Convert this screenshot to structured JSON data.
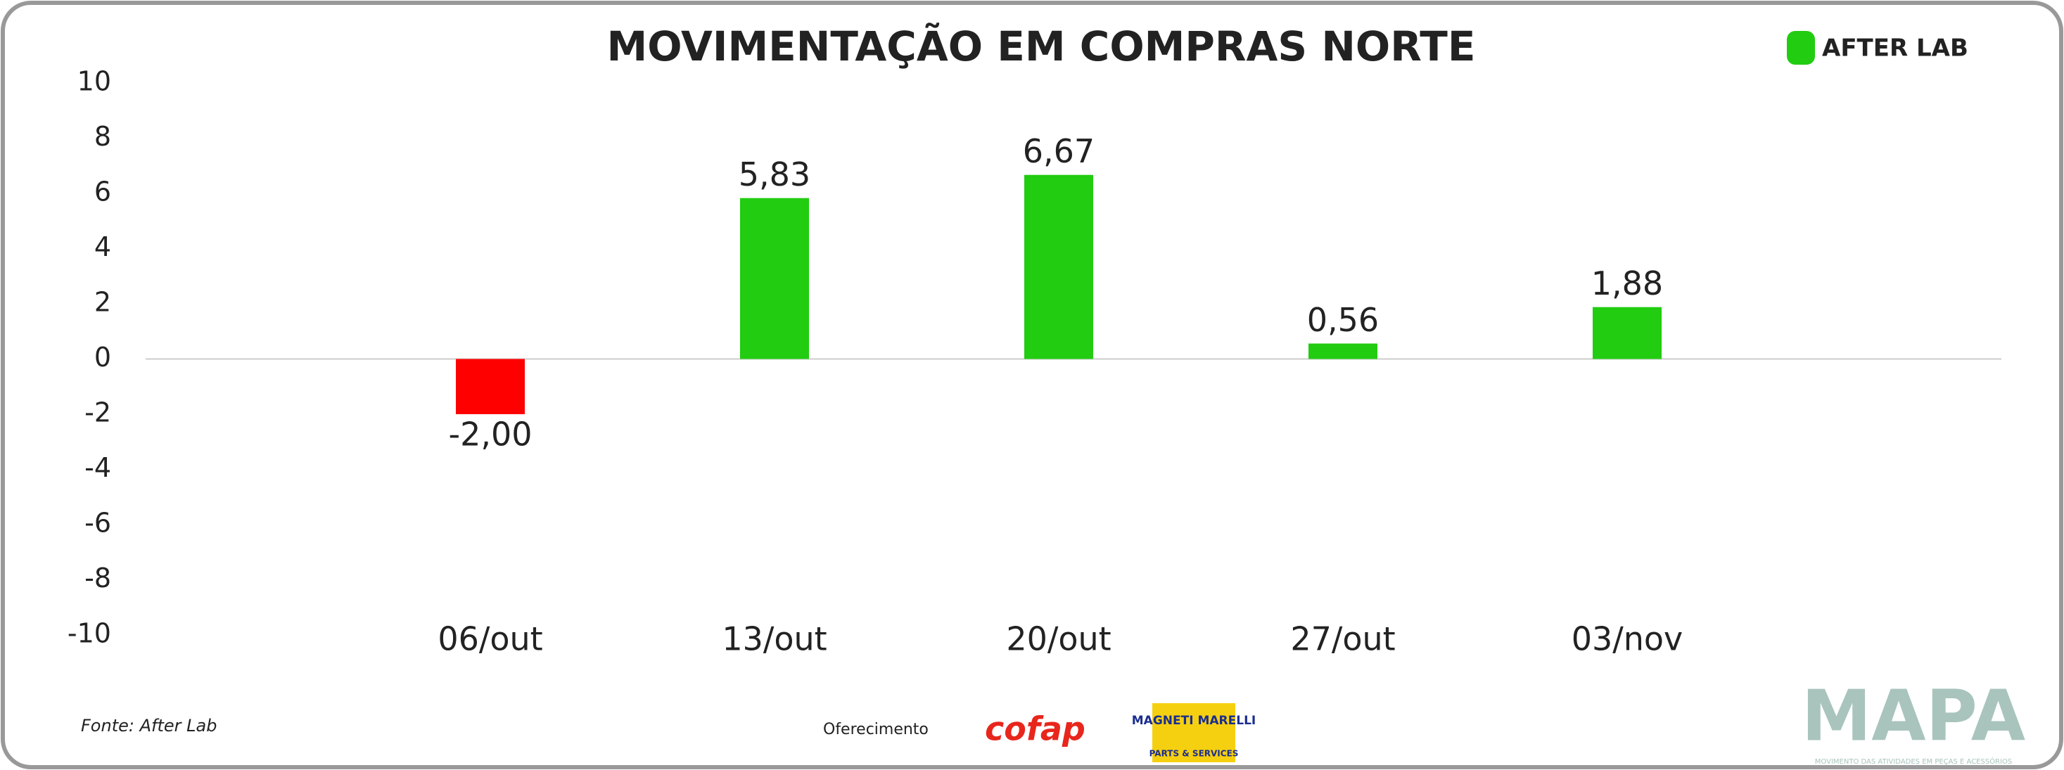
{
  "chart_data": {
    "type": "bar",
    "title": "MOVIMENTAÇÃO EM COMPRAS NORTE",
    "categories": [
      "06/out",
      "13/out",
      "20/out",
      "27/out",
      "03/nov"
    ],
    "values": [
      -2.0,
      5.83,
      6.67,
      0.56,
      1.88
    ],
    "value_labels": [
      "-2,00",
      "5,83",
      "6,67",
      "0,56",
      "1,88"
    ],
    "colors": [
      "#ff0000",
      "#22cc11",
      "#22cc11",
      "#22cc11",
      "#22cc11"
    ],
    "ylim": [
      -10,
      10
    ],
    "yticks": [
      -10,
      -8,
      -6,
      -4,
      -2,
      0,
      2,
      4,
      6,
      8,
      10
    ],
    "grid": false
  },
  "footer": {
    "source": "Fonte: After Lab",
    "sponsor": "Oferecimento",
    "logo": "AFTER LAB",
    "sponsor_1": "cofap",
    "sponsor_2": "MAGNETI MARELLI",
    "sponsor_2_sub": "PARTS & SERVICES",
    "brand": "MAPA",
    "brand_sub": "MOVIMENTO DAS ATIVIDADES EM PEÇAS E ACESSÓRIOS"
  }
}
